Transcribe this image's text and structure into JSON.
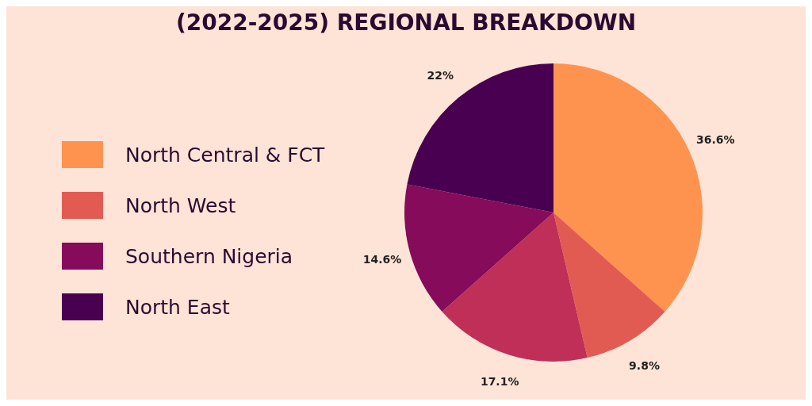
{
  "chart_data": {
    "type": "pie",
    "title": "(2022-2025) REGIONAL BREAKDOWN",
    "categories": [
      "North Central & FCT",
      "North West",
      null,
      "Southern Nigeria",
      "North East"
    ],
    "values": [
      36.6,
      9.8,
      17.1,
      14.6,
      22
    ],
    "colors": [
      "#fe9350",
      "#e25b52",
      "#bf2f57",
      "#860b5a",
      "#4a0050"
    ],
    "value_labels": [
      "36.6%",
      "9.8%",
      "17.1%",
      "14.6%",
      "22%"
    ],
    "legend": "left"
  }
}
